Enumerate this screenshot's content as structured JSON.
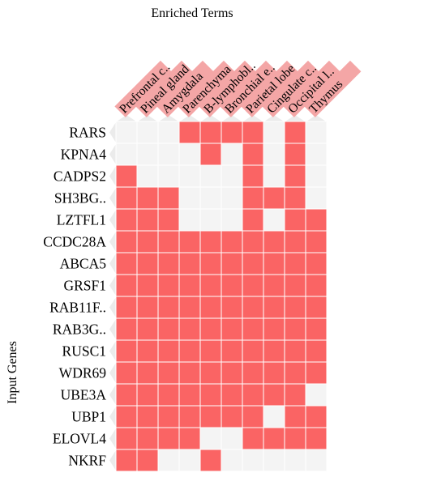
{
  "chart_data": {
    "type": "heatmap",
    "title": "Enriched Terms",
    "ylabel": "Input Genes",
    "columns": [
      "Prefrontal c..",
      "Pineal gland",
      "Amygdala",
      "Parenchyma",
      "B-lymphobl..",
      "Bronchial e..",
      "Parietal lobe",
      "Cingulate c..",
      "Occipital l..",
      "Thymus"
    ],
    "rows": [
      "RARS",
      "KPNA4",
      "CADPS2",
      "SH3BG..",
      "LZTFL1",
      "CCDC28A",
      "ABCA5",
      "GRSF1",
      "RAB11F..",
      "RAB3G..",
      "RUSC1",
      "WDR69",
      "UBE3A",
      "UBP1",
      "ELOVL4",
      "NKRF"
    ],
    "matrix": [
      [
        0,
        0,
        0,
        1,
        1,
        1,
        1,
        0,
        1,
        0
      ],
      [
        0,
        0,
        0,
        0,
        1,
        0,
        1,
        0,
        1,
        0
      ],
      [
        1,
        0,
        0,
        0,
        0,
        0,
        1,
        0,
        1,
        0
      ],
      [
        1,
        1,
        1,
        0,
        0,
        0,
        1,
        1,
        1,
        0
      ],
      [
        1,
        1,
        1,
        0,
        0,
        0,
        1,
        0,
        1,
        1
      ],
      [
        1,
        1,
        1,
        1,
        1,
        1,
        1,
        1,
        1,
        1
      ],
      [
        1,
        1,
        1,
        1,
        1,
        1,
        1,
        1,
        1,
        1
      ],
      [
        1,
        1,
        1,
        1,
        1,
        1,
        1,
        1,
        1,
        1
      ],
      [
        1,
        1,
        1,
        1,
        1,
        1,
        1,
        1,
        1,
        1
      ],
      [
        1,
        1,
        1,
        1,
        1,
        1,
        1,
        1,
        1,
        1
      ],
      [
        1,
        1,
        1,
        1,
        1,
        1,
        1,
        1,
        1,
        1
      ],
      [
        1,
        1,
        1,
        1,
        1,
        1,
        1,
        1,
        1,
        1
      ],
      [
        1,
        1,
        1,
        1,
        1,
        1,
        1,
        1,
        1,
        0
      ],
      [
        1,
        1,
        1,
        1,
        1,
        1,
        1,
        0,
        1,
        1
      ],
      [
        1,
        1,
        1,
        1,
        0,
        0,
        1,
        1,
        1,
        1
      ],
      [
        1,
        1,
        0,
        0,
        1,
        0,
        0,
        0,
        0,
        0
      ]
    ],
    "highlighted_columns": [
      0,
      1,
      2,
      3,
      4,
      5,
      6,
      7,
      8,
      9
    ],
    "colors": {
      "present": "#fa6464",
      "absent": "#f4f4f4",
      "grid": "#ffffff",
      "column_label_highlight": "#f4a6a6",
      "row_arrow": "#ebebeb"
    }
  }
}
